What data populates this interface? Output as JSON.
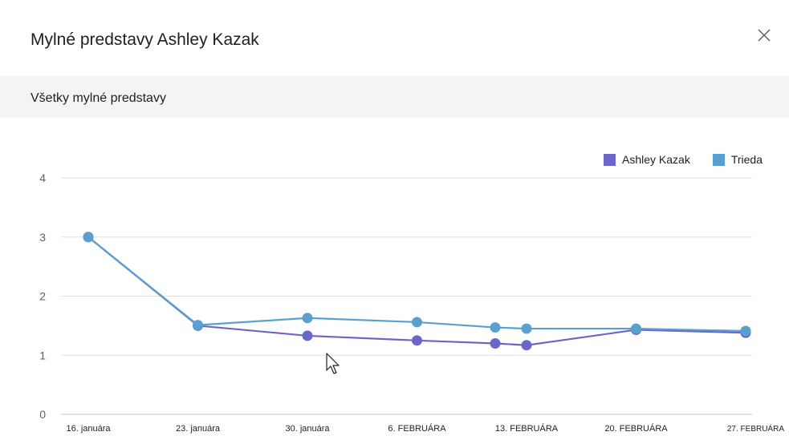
{
  "dialog": {
    "title": "Mylné predstavy Ashley Kazak",
    "close_icon": "close-icon"
  },
  "subheader": {
    "label": "Všetky mylné predstavy"
  },
  "colors": {
    "student": "#6b67c7",
    "class": "#5aa0cf",
    "grid": "#e1e1e1",
    "tick": "#605e5c"
  },
  "chart_data": {
    "type": "line",
    "categories": [
      "16. januára",
      "23. januára",
      "30. januára",
      "6. FEBRUÁRA",
      "13. FEBRUÁRA",
      "20. FEBRUÁRA",
      "27. FEBRUÁRA"
    ],
    "x_days": [
      0,
      7,
      14,
      21,
      26,
      28,
      35,
      42
    ],
    "y_ticks": [
      0,
      1,
      2,
      3,
      4
    ],
    "ylim": [
      0,
      4
    ],
    "legend_position": "top-right",
    "grid": true,
    "series": [
      {
        "name": "Ashley Kazak",
        "color": "#6b67c7",
        "points": [
          {
            "x": "16. januára",
            "y": 3.0
          },
          {
            "x": "23. januára",
            "y": 1.5
          },
          {
            "x": "30. januára",
            "y": 1.33
          },
          {
            "x": "6. FEBRUÁRA",
            "y": 1.25
          },
          {
            "x": "11. FEBRUÁRA",
            "y": 1.2
          },
          {
            "x": "13. FEBRUÁRA",
            "y": 1.17
          },
          {
            "x": "20. FEBRUÁRA",
            "y": 1.43
          },
          {
            "x": "27. FEBRUÁRA",
            "y": 1.38
          }
        ]
      },
      {
        "name": "Trieda",
        "color": "#5aa0cf",
        "points": [
          {
            "x": "16. januára",
            "y": 3.0
          },
          {
            "x": "23. januára",
            "y": 1.51
          },
          {
            "x": "30. januára",
            "y": 1.63
          },
          {
            "x": "6. FEBRUÁRA",
            "y": 1.56
          },
          {
            "x": "11. FEBRUÁRA",
            "y": 1.47
          },
          {
            "x": "13. FEBRUÁRA",
            "y": 1.45
          },
          {
            "x": "20. FEBRUÁRA",
            "y": 1.45
          },
          {
            "x": "27. FEBRUÁRA",
            "y": 1.41
          }
        ]
      }
    ]
  }
}
